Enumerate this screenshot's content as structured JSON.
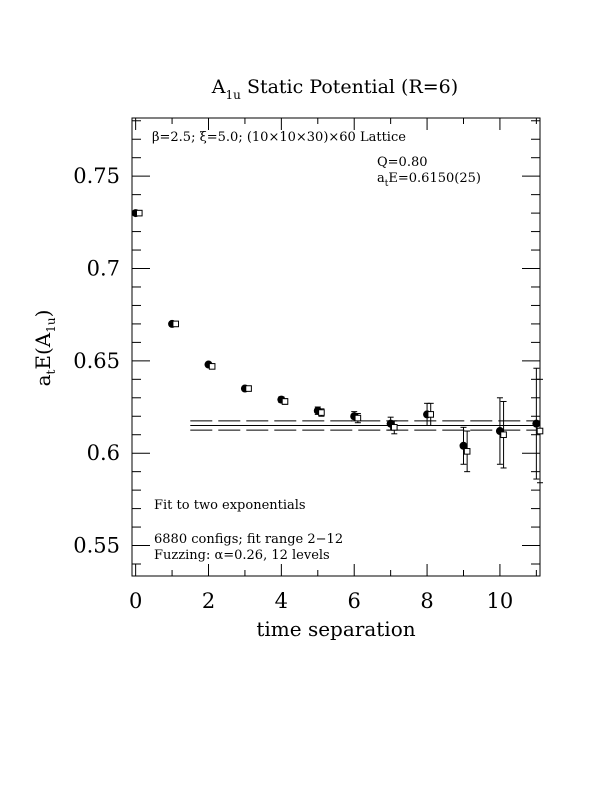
{
  "chart_data": {
    "type": "scatter",
    "title": {
      "main": "A",
      "sub": "1u",
      "rest": " Static Potential (R=6)"
    },
    "xlabel": "time separation",
    "ylabel": {
      "main": "a",
      "sub1": "t",
      "mid": "E(A",
      "sub2": "1u",
      "end": ")"
    },
    "xlim": [
      -0.1,
      11.1
    ],
    "ylim": [
      0.5335,
      0.7815
    ],
    "x_ticks": [
      0,
      2,
      4,
      6,
      8,
      10
    ],
    "x_tick_labels": [
      "0",
      "2",
      "4",
      "6",
      "8",
      "10"
    ],
    "y_ticks": [
      0.55,
      0.6,
      0.65,
      0.7,
      0.75
    ],
    "y_tick_labels": [
      "0.55",
      "0.6",
      "0.65",
      "0.7",
      "0.75"
    ],
    "grid": false,
    "series": [
      {
        "marker": "filled-circle",
        "x": [
          0,
          1,
          2,
          3,
          4,
          5,
          6,
          7,
          8,
          9,
          10,
          11
        ],
        "y": [
          0.73,
          0.67,
          0.648,
          0.635,
          0.629,
          0.623,
          0.62,
          0.616,
          0.621,
          0.604,
          0.612,
          0.616
        ],
        "err": [
          0.0008,
          0.001,
          0.001,
          0.0012,
          0.0015,
          0.002,
          0.0025,
          0.0035,
          0.006,
          0.01,
          0.018,
          0.03
        ]
      },
      {
        "marker": "open-square",
        "x": [
          0.1,
          1.1,
          2.1,
          3.1,
          4.1,
          5.1,
          6.1,
          7.1,
          8.1,
          9.1,
          10.1,
          11.1
        ],
        "y": [
          0.73,
          0.67,
          0.647,
          0.635,
          0.628,
          0.622,
          0.619,
          0.614,
          0.621,
          0.601,
          0.61,
          0.612
        ],
        "err": [
          0.0008,
          0.001,
          0.001,
          0.0012,
          0.0015,
          0.002,
          0.0025,
          0.0035,
          0.006,
          0.011,
          0.018,
          0.028
        ]
      }
    ],
    "fit": {
      "x_range": [
        1.5,
        11.1
      ],
      "value": 0.615,
      "error": 0.0025
    },
    "annotations": {
      "lattice": "β=2.5; ξ=5.0; (10×10×30)×60 Lattice",
      "q": "Q=0.80",
      "energy": {
        "main": "a",
        "sub": "t",
        "rest": "E=0.6150(25)"
      },
      "fit_desc": "Fit to two exponentials",
      "configs": "6880 configs; fit range 2−12",
      "fuzzing": "Fuzzing: α=0.26, 12 levels"
    }
  }
}
